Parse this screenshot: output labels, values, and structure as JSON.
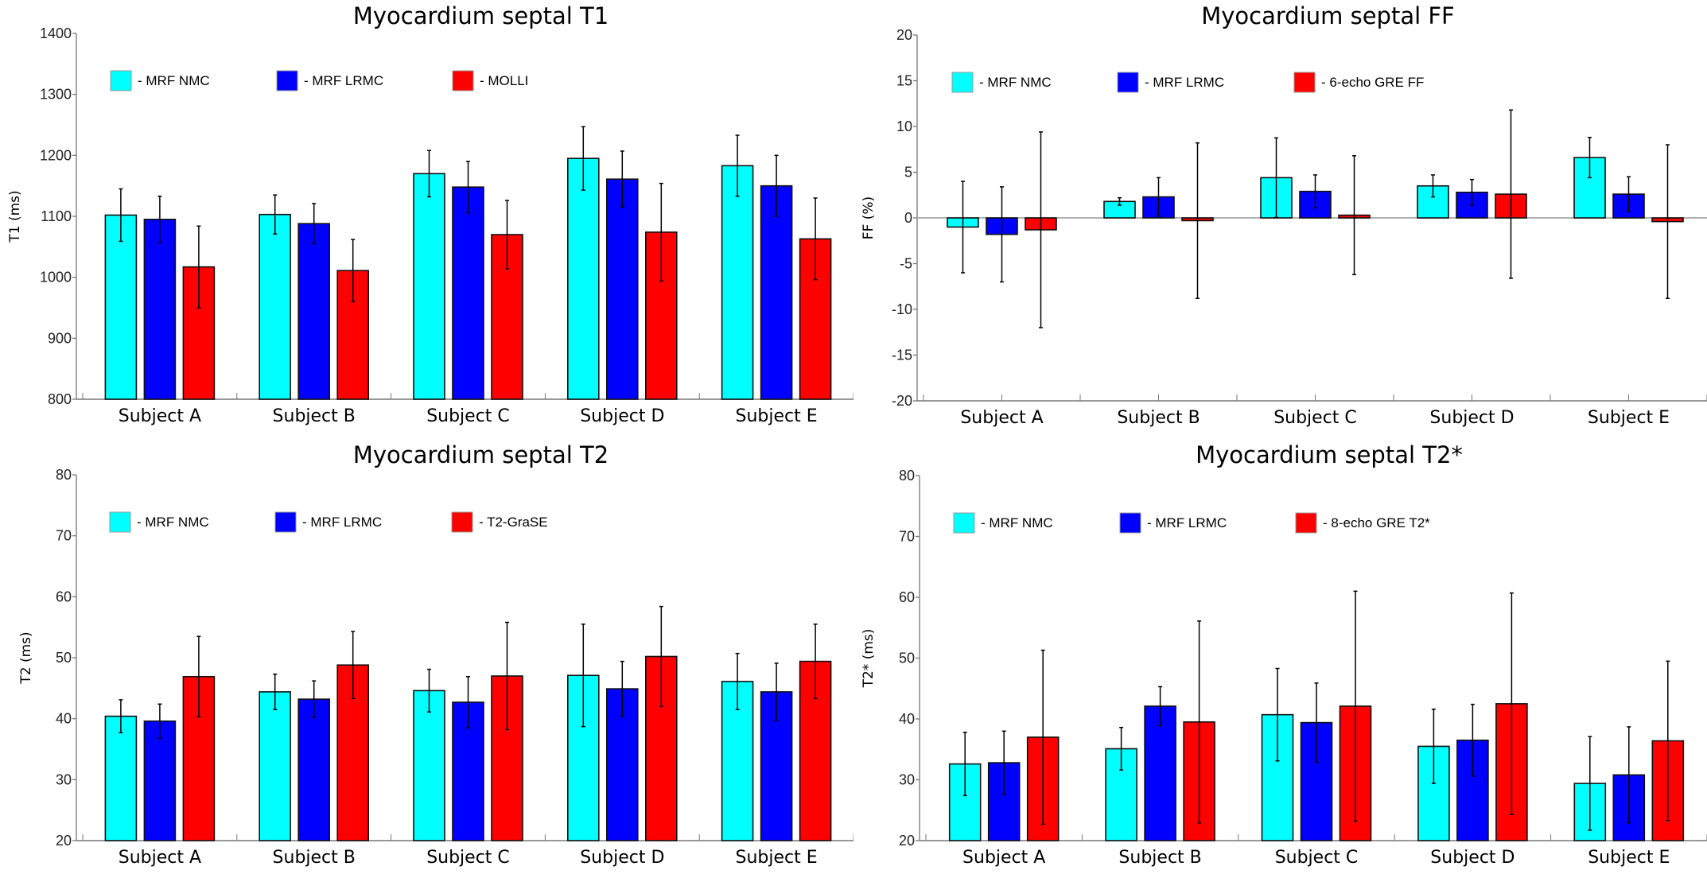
{
  "chart_data": [
    {
      "type": "bar",
      "title": "Myocardium septal T1",
      "xlabel": "",
      "ylabel": "T1 (ms)",
      "ylim": [
        800,
        1400
      ],
      "yticks": [
        800,
        900,
        1000,
        1100,
        1200,
        1300,
        1400
      ],
      "categories": [
        "Subject A",
        "Subject B",
        "Subject C",
        "Subject D",
        "Subject E"
      ],
      "legend_position": "top-left",
      "series": [
        {
          "name": "- MRF NMC",
          "color": "#00FFFF",
          "values": [
            1102,
            1103,
            1170,
            1195,
            1183
          ],
          "errors": [
            43,
            32,
            38,
            52,
            50
          ]
        },
        {
          "name": "- MRF LRMC",
          "color": "#0000FF",
          "values": [
            1095,
            1088,
            1148,
            1161,
            1150
          ],
          "errors": [
            38,
            33,
            42,
            46,
            50
          ]
        },
        {
          "name": "- MOLLI",
          "color": "#FF0000",
          "values": [
            1017,
            1011,
            1070,
            1074,
            1063
          ],
          "errors": [
            67,
            51,
            56,
            80,
            67
          ]
        }
      ]
    },
    {
      "type": "bar",
      "title": "Myocardium septal FF",
      "xlabel": "",
      "ylabel": "FF (%)",
      "ylim": [
        -20,
        20
      ],
      "yticks": [
        -20,
        -15,
        -10,
        -5,
        0,
        5,
        10,
        15,
        20
      ],
      "categories": [
        "Subject A",
        "Subject B",
        "Subject C",
        "Subject D",
        "Subject E"
      ],
      "legend_position": "top-left",
      "series": [
        {
          "name": "- MRF NMC",
          "color": "#00FFFF",
          "values": [
            -1.0,
            1.8,
            4.4,
            3.5,
            6.6
          ],
          "errors": [
            5.0,
            0.4,
            4.35,
            1.2,
            2.2
          ]
        },
        {
          "name": "- MRF LRMC",
          "color": "#0000FF",
          "values": [
            -1.8,
            2.3,
            2.9,
            2.8,
            2.6
          ],
          "errors": [
            5.2,
            2.1,
            1.8,
            1.4,
            1.9
          ]
        },
        {
          "name": "- 6-echo GRE FF",
          "color": "#FF0000",
          "values": [
            -1.3,
            -0.3,
            0.3,
            2.6,
            -0.4
          ],
          "errors": [
            10.7,
            8.5,
            6.5,
            9.2,
            8.4
          ]
        }
      ]
    },
    {
      "type": "bar",
      "title": "Myocardium septal T2",
      "xlabel": "",
      "ylabel": "T2 (ms)",
      "ylim": [
        20,
        80
      ],
      "yticks": [
        20,
        30,
        40,
        50,
        60,
        70,
        80
      ],
      "categories": [
        "Subject A",
        "Subject B",
        "Subject C",
        "Subject D",
        "Subject E"
      ],
      "legend_position": "top-left",
      "series": [
        {
          "name": "- MRF NMC",
          "color": "#00FFFF",
          "values": [
            40.4,
            44.4,
            44.6,
            47.1,
            46.1
          ],
          "errors": [
            2.7,
            2.9,
            3.5,
            8.4,
            4.6
          ]
        },
        {
          "name": "- MRF LRMC",
          "color": "#0000FF",
          "values": [
            39.6,
            43.2,
            42.7,
            44.9,
            44.4
          ],
          "errors": [
            2.8,
            3.0,
            4.2,
            4.5,
            4.7
          ]
        },
        {
          "name": "- T2-GraSE",
          "color": "#FF0000",
          "values": [
            46.9,
            48.8,
            47.0,
            50.2,
            49.4
          ],
          "errors": [
            6.6,
            5.5,
            8.8,
            8.2,
            6.1
          ]
        }
      ]
    },
    {
      "type": "bar",
      "title": "Myocardium septal T2*",
      "xlabel": "",
      "ylabel": "T2* (ms)",
      "ylim": [
        20,
        80
      ],
      "yticks": [
        20,
        30,
        40,
        50,
        60,
        70,
        80
      ],
      "categories": [
        "Subject A",
        "Subject B",
        "Subject C",
        "Subject D",
        "Subject E"
      ],
      "legend_position": "top-left",
      "series": [
        {
          "name": "- MRF NMC",
          "color": "#00FFFF",
          "values": [
            32.6,
            35.1,
            40.7,
            35.5,
            29.4
          ],
          "errors": [
            5.2,
            3.5,
            7.6,
            6.1,
            7.7
          ]
        },
        {
          "name": "- MRF LRMC",
          "color": "#0000FF",
          "values": [
            32.8,
            42.1,
            39.4,
            36.5,
            30.8
          ],
          "errors": [
            5.2,
            3.2,
            6.5,
            5.9,
            7.9
          ]
        },
        {
          "name": "- 8-echo GRE T2*",
          "color": "#FF0000",
          "values": [
            37.0,
            39.5,
            42.1,
            42.5,
            36.4
          ],
          "errors": [
            14.3,
            16.6,
            18.9,
            18.2,
            13.1
          ]
        }
      ]
    }
  ]
}
